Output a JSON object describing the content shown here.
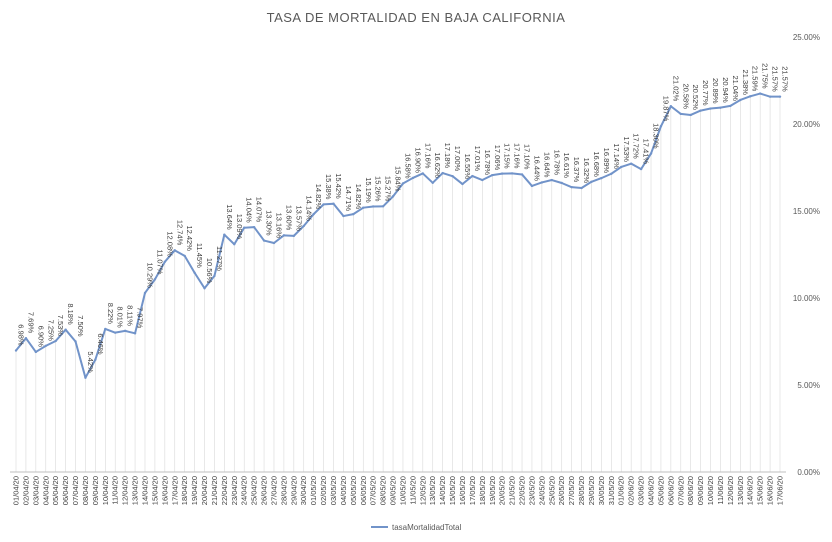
{
  "chart_data": {
    "type": "line",
    "title": "TASA DE MORTALIDAD EN BAJA CALIFORNIA",
    "xlabel": "",
    "ylabel": "",
    "ylim": [
      0,
      25
    ],
    "y_ticks": [
      "0.00%",
      "5.00%",
      "10.00%",
      "15.00%",
      "20.00%",
      "25.00%"
    ],
    "y_axis_position": "right",
    "grid": "vertical lines at each category",
    "legend_position": "bottom",
    "series_color": "#7193c9",
    "series": [
      {
        "name": "tasaMortalidadTotal",
        "values": [
          6.98,
          7.69,
          6.9,
          7.25,
          7.53,
          8.18,
          7.5,
          5.42,
          6.46,
          8.22,
          8.01,
          8.11,
          7.97,
          10.29,
          11.07,
          12.08,
          12.74,
          12.42,
          11.45,
          10.56,
          11.27,
          13.64,
          13.09,
          14.04,
          14.07,
          13.3,
          13.16,
          13.6,
          13.57,
          14.14,
          14.82,
          15.38,
          15.42,
          14.71,
          14.82,
          15.19,
          15.26,
          15.27,
          15.84,
          16.58,
          16.9,
          17.16,
          16.62,
          17.18,
          17.0,
          16.55,
          17.01,
          16.78,
          17.06,
          17.15,
          17.16,
          17.1,
          16.44,
          16.64,
          16.78,
          16.61,
          16.37,
          16.32,
          16.68,
          16.89,
          17.14,
          17.53,
          17.72,
          17.41,
          18.3,
          19.87,
          21.02,
          20.58,
          20.52,
          20.77,
          20.89,
          20.94,
          21.04,
          21.38,
          21.59,
          21.75,
          21.57,
          21.57
        ]
      }
    ],
    "data_labels": [
      "6.98%",
      "7.69%",
      "6.90%",
      "7.25%",
      "7.53%",
      "8.18%",
      "7.50%",
      "5.42%",
      "6.46%",
      "8.22%",
      "8.01%",
      "8.11%",
      "7.97%",
      "10.29%",
      "11.07%",
      "12.08%",
      "12.74%",
      "12.42%",
      "11.45%",
      "10.56%",
      "11.27%",
      "13.64%",
      "13.09%",
      "14.04%",
      "14.07%",
      "13.30%",
      "13.16%",
      "13.60%",
      "13.57%",
      "14.14%",
      "14.82%",
      "15.38%",
      "15.42%",
      "14.71%",
      "14.82%",
      "15.19%",
      "15.26%",
      "15.27%",
      "15.84%",
      "16.58%",
      "16.90%",
      "17.16%",
      "16.62%",
      "17.18%",
      "17.00%",
      "16.55%",
      "17.01%",
      "16.78%",
      "17.06%",
      "17.15%",
      "17.16%",
      "17.10%",
      "16.44%",
      "16.64%",
      "16.78%",
      "16.61%",
      "16.37%",
      "16.32%",
      "16.68%",
      "16.89%",
      "17.14%",
      "17.53%",
      "17.72%",
      "17.41%",
      "18.30%",
      "19.87%",
      "21.02%",
      "20.58%",
      "20.52%",
      "20.77%",
      "20.89%",
      "20.94%",
      "21.04%",
      "21.38%",
      "21.59%",
      "21.75%",
      "21.57%",
      "21.57%"
    ],
    "categories": [
      "01/04/20",
      "02/04/20",
      "03/04/20",
      "04/04/20",
      "05/04/20",
      "06/04/20",
      "07/04/20",
      "08/04/20",
      "09/04/20",
      "10/04/20",
      "11/04/20",
      "12/04/20",
      "13/04/20",
      "14/04/20",
      "15/04/20",
      "16/04/20",
      "17/04/20",
      "18/04/20",
      "19/04/20",
      "20/04/20",
      "21/04/20",
      "22/04/20",
      "23/04/20",
      "24/04/20",
      "25/04/20",
      "26/04/20",
      "27/04/20",
      "28/04/20",
      "29/04/20",
      "30/04/20",
      "01/05/20",
      "02/05/20",
      "03/05/20",
      "04/05/20",
      "05/05/20",
      "06/05/20",
      "07/05/20",
      "08/05/20",
      "09/05/20",
      "10/05/20",
      "11/05/20",
      "12/05/20",
      "13/05/20",
      "14/05/20",
      "15/05/20",
      "16/05/20",
      "17/05/20",
      "18/05/20",
      "19/05/20",
      "20/05/20",
      "21/05/20",
      "22/05/20",
      "23/05/20",
      "24/05/20",
      "25/05/20",
      "26/05/20",
      "27/05/20",
      "28/05/20",
      "29/05/20",
      "30/05/20",
      "31/05/20",
      "01/06/20",
      "02/06/20",
      "03/06/20",
      "04/06/20",
      "05/06/20",
      "06/06/20",
      "07/06/20",
      "08/06/20",
      "09/06/20",
      "10/06/20",
      "11/06/20",
      "12/06/20",
      "13/06/20",
      "14/06/20",
      "15/06/20",
      "16/06/20",
      "17/06/20"
    ]
  }
}
